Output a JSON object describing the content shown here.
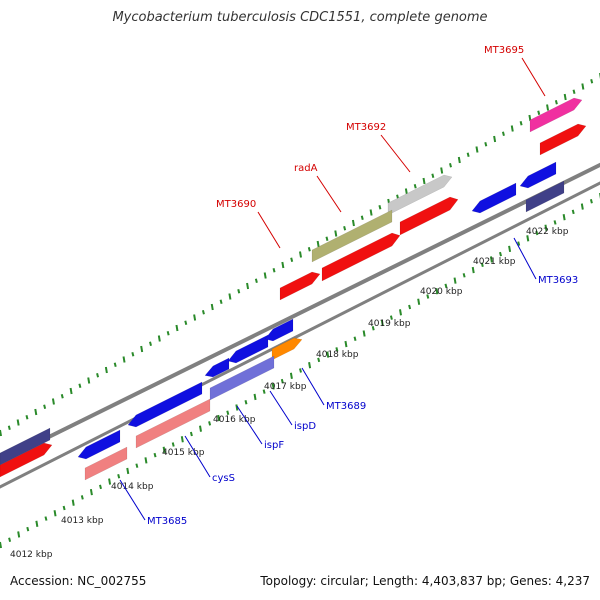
{
  "title": "Mycobacterium tuberculosis CDC1551, complete genome",
  "footer": {
    "accession": "Accession: NC_002755",
    "summary": "Topology: circular; Length: 4,403,837 bp; Genes: 4,237"
  },
  "ticks": [
    "4012 kbp",
    "4013 kbp",
    "4014 kbp",
    "4015 kbp",
    "4016 kbp",
    "4017 kbp",
    "4018 kbp",
    "4019 kbp",
    "4020 kbp",
    "4021 kbp",
    "4022 kbp"
  ],
  "labels": [
    {
      "text": "MT3695",
      "color": "#d40000"
    },
    {
      "text": "MT3692",
      "color": "#d40000"
    },
    {
      "text": "radA",
      "color": "#d40000"
    },
    {
      "text": "MT3690",
      "color": "#d40000"
    },
    {
      "text": "MT3693",
      "color": "#0000cc"
    },
    {
      "text": "MT3689",
      "color": "#0000cc"
    },
    {
      "text": "ispD",
      "color": "#0000cc"
    },
    {
      "text": "ispF",
      "color": "#0000cc"
    },
    {
      "text": "cysS",
      "color": "#0000cc"
    },
    {
      "text": "MT3685",
      "color": "#0000cc"
    }
  ],
  "colors": {
    "blue": "#1010e0",
    "red": "#f01010",
    "pink": "#f08080",
    "navy": "#404088",
    "lavender": "#7070d8",
    "orange": "#ff8800",
    "olive": "#b0b070",
    "grey": "#c8c8c8",
    "magenta": "#f030a0",
    "backbone": "#808080",
    "tick": "#2a8a2a"
  }
}
